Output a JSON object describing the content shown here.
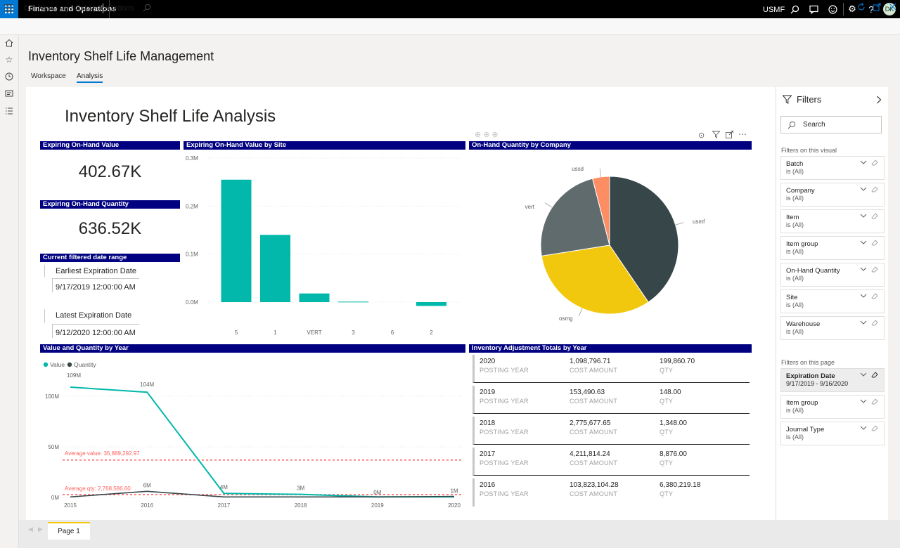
{
  "topbar": {
    "app_title": "Finance and Operations",
    "company": "USMF",
    "avatar_initials": "DK",
    "accent_color": "#0078d4"
  },
  "actionbar": {
    "configure_label": "Configure my workspace",
    "options_label": "Options"
  },
  "page": {
    "title": "Inventory Shelf Life Management",
    "tabs": [
      "Workspace",
      "Analysis"
    ],
    "active_tab": "Analysis"
  },
  "report": {
    "title": "Inventory Shelf Life Analysis",
    "kpis": {
      "value_header": "Expiring On-Hand Value",
      "value": "402.67K",
      "qty_header": "Expiring On-Hand Quantity",
      "qty": "636.52K"
    },
    "date_range": {
      "header": "Current filtered date range",
      "earliest_label": "Earliest Expiration Date",
      "earliest_value": "9/17/2019 12:00:00 AM",
      "latest_label": "Latest Expiration Date",
      "latest_value": "9/12/2020 12:00:00 AM"
    },
    "bar_header": "Expiring On-Hand Value by Site",
    "pie_header": "On-Hand Quantity by Company",
    "line_header": "Value and Quantity by Year",
    "line_legend": [
      "Value",
      "Quantity"
    ],
    "avg_value_label": "Average value: 36,889,292.97",
    "avg_qty_label": "Average qty: 2,768,586.60",
    "adj_header": "Inventory Adjustment Totals by Year",
    "adj_labels": {
      "year": "POSTING YEAR",
      "cost": "COST AMOUNT",
      "qty": "QTY"
    },
    "adjustments": [
      {
        "year": "2020",
        "cost": "1,098,796.71",
        "qty": "199,860.70"
      },
      {
        "year": "2019",
        "cost": "153,490.63",
        "qty": "148.00"
      },
      {
        "year": "2018",
        "cost": "2,775,677.65",
        "qty": "1,348.00"
      },
      {
        "year": "2017",
        "cost": "4,211,814.24",
        "qty": "8,876.00"
      },
      {
        "year": "2016",
        "cost": "103,823,104.28",
        "qty": "6,380,219.18"
      }
    ]
  },
  "chart_data": [
    {
      "type": "bar",
      "title": "Expiring On-Hand Value by Site",
      "categories": [
        "5",
        "1",
        "VERT",
        "3",
        "6",
        "2"
      ],
      "values": [
        0.255,
        0.14,
        0.018,
        0.001,
        0.0,
        -0.008
      ],
      "unit": "M",
      "yticks": [
        "0.3M",
        "0.2M",
        "0.1M",
        "0.0M"
      ],
      "ylim": [
        -0.01,
        0.3
      ],
      "color": "#01b8aa"
    },
    {
      "type": "pie",
      "title": "On-Hand Quantity by Company",
      "slices": [
        {
          "label": "usmf",
          "value": 40.5,
          "color": "#374649"
        },
        {
          "label": "osmg",
          "value": 32.0,
          "color": "#f2c80f"
        },
        {
          "label": "vert",
          "value": 23.5,
          "color": "#5f6b6d"
        },
        {
          "label": "ussd",
          "value": 4.0,
          "color": "#fd8d62"
        }
      ]
    },
    {
      "type": "line",
      "title": "Value and Quantity by Year",
      "x": [
        "2015",
        "2016",
        "2017",
        "2018",
        "2019",
        "2020"
      ],
      "yticks": [
        "100M",
        "50M",
        "0M"
      ],
      "ylim": [
        0,
        115
      ],
      "series": [
        {
          "name": "Value",
          "values": [
            109,
            104,
            4,
            3,
            0.5,
            0.5
          ],
          "color": "#01b8aa"
        },
        {
          "name": "Quantity",
          "values": [
            0.5,
            6,
            0.5,
            0.5,
            0.5,
            1
          ],
          "color": "#374649"
        }
      ],
      "data_labels": [
        "109M",
        "104M",
        "4M",
        "3M",
        "0M",
        "1M"
      ],
      "data_label_6m": "6M",
      "avg_value": 36.889,
      "avg_qty": 2.769,
      "avg_color": "#fd625e"
    }
  ],
  "filters": {
    "title": "Filters",
    "search_placeholder": "Search",
    "visual_section": "Filters on this visual",
    "visual_filters": [
      {
        "name": "Batch",
        "value": "is (All)"
      },
      {
        "name": "Company",
        "value": "is (All)"
      },
      {
        "name": "Item",
        "value": "is (All)"
      },
      {
        "name": "Item group",
        "value": "is (All)"
      },
      {
        "name": "On-Hand Quantity",
        "value": "is (All)"
      },
      {
        "name": "Site",
        "value": "is (All)"
      },
      {
        "name": "Warehouse",
        "value": "is (All)"
      }
    ],
    "page_section": "Filters on this page",
    "page_filters": [
      {
        "name": "Expiration Date",
        "value": "9/17/2019 - 9/16/2020",
        "active": true
      },
      {
        "name": "Item group",
        "value": "is (All)"
      },
      {
        "name": "Journal Type",
        "value": "is (All)"
      }
    ]
  },
  "pagebar": {
    "page_tab": "Page 1"
  }
}
